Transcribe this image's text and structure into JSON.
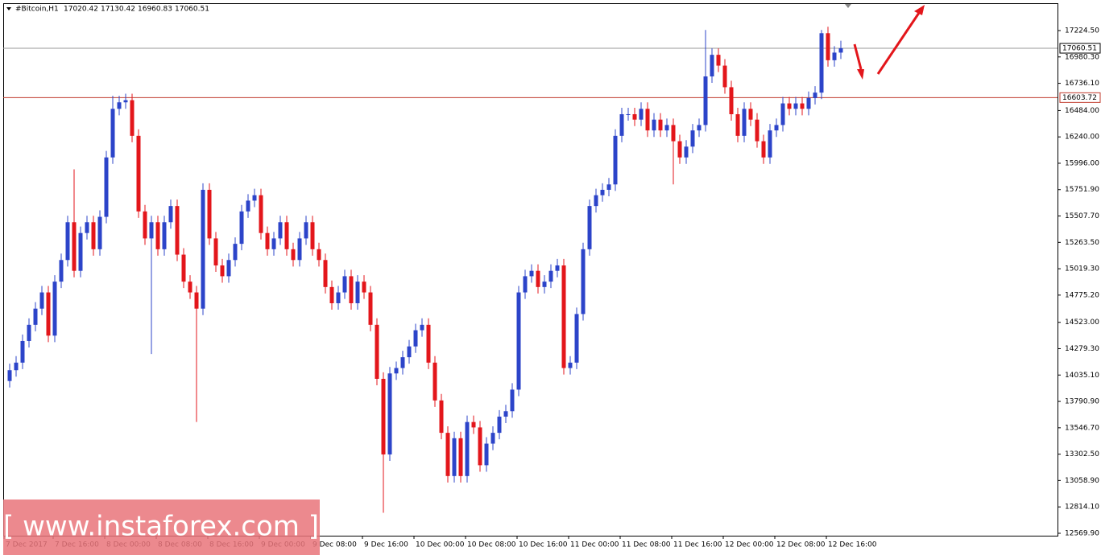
{
  "chart_data": {
    "type": "candlestick",
    "symbol": "#Bitcoin,H1",
    "header_values": [
      17020.42,
      17130.42,
      16960.83,
      17060.51
    ],
    "watermark": "[ www.instaforex.com ]",
    "up_color": "#2c44c9",
    "down_color": "#e3161b",
    "grid": false,
    "ylim": [
      12547.6,
      17477.7
    ],
    "yticks": [
      {
        "value": 17224.5,
        "label": "17224.50"
      },
      {
        "value": 16980.3,
        "label": "16980.30"
      },
      {
        "value": 16736.1,
        "label": "16736.10"
      },
      {
        "value": 16484,
        "label": "16484.00"
      },
      {
        "value": 16240,
        "label": "16240.00"
      },
      {
        "value": 15996,
        "label": "15996.00"
      },
      {
        "value": 15751.9,
        "label": "15751.90"
      },
      {
        "value": 15507.7,
        "label": "15507.70"
      },
      {
        "value": 15263.5,
        "label": "15263.50"
      },
      {
        "value": 15019.3,
        "label": "15019.30"
      },
      {
        "value": 14775.2,
        "label": "14775.20"
      },
      {
        "value": 14523,
        "label": "14523.00"
      },
      {
        "value": 14279.3,
        "label": "14279.30"
      },
      {
        "value": 14035.1,
        "label": "14035.10"
      },
      {
        "value": 13790.9,
        "label": "13790.90"
      },
      {
        "value": 13546.7,
        "label": "13546.70"
      },
      {
        "value": 13302.5,
        "label": "13302.50"
      },
      {
        "value": 13058.9,
        "label": "13058.90"
      },
      {
        "value": 12814.1,
        "label": "12814.10"
      },
      {
        "value": 12569.9,
        "label": "12569.90"
      }
    ],
    "levels": [
      17060.51,
      16603.72
    ],
    "level_colors": [
      "#999999",
      "#c0392b"
    ],
    "level_label_colors": [
      "#000000",
      "#c0392b"
    ],
    "categories": [
      "7 Dec 2017",
      null,
      null,
      null,
      null,
      null,
      null,
      "7 Dec 16:00",
      null,
      null,
      null,
      null,
      null,
      null,
      null,
      "8 Dec 00:00",
      null,
      null,
      null,
      null,
      null,
      null,
      null,
      "8 Dec 08:00",
      null,
      null,
      null,
      null,
      null,
      null,
      null,
      "8 Dec 16:00",
      null,
      null,
      null,
      null,
      null,
      null,
      null,
      "9 Dec 00:00",
      null,
      null,
      null,
      null,
      null,
      null,
      null,
      "9 Dec 08:00",
      null,
      null,
      null,
      null,
      null,
      null,
      null,
      "9 Dec 16:00",
      null,
      null,
      null,
      null,
      null,
      null,
      null,
      "10 Dec 00:00",
      null,
      null,
      null,
      null,
      null,
      null,
      null,
      "10 Dec 08:00",
      null,
      null,
      null,
      null,
      null,
      null,
      null,
      "10 Dec 16:00",
      null,
      null,
      null,
      null,
      null,
      null,
      null,
      "11 Dec 00:00",
      null,
      null,
      null,
      null,
      null,
      null,
      null,
      "11 Dec 08:00",
      null,
      null,
      null,
      null,
      null,
      null,
      null,
      "11 Dec 16:00",
      null,
      null,
      null,
      null,
      null,
      null,
      null,
      "12 Dec 00:00",
      null,
      null,
      null,
      null,
      null,
      null,
      null,
      "12 Dec 08:00",
      null,
      null,
      null,
      null,
      null,
      null,
      null,
      "12 Dec 16:00",
      null,
      null
    ],
    "open": [
      13980,
      14080,
      14150,
      14350,
      14500,
      14650,
      14800,
      14400,
      14900,
      15100,
      15450,
      15000,
      15350,
      15450,
      15200,
      15500,
      16050,
      16500,
      16560,
      16580,
      16250,
      15550,
      15300,
      15450,
      15200,
      15450,
      15600,
      15150,
      14900,
      14800,
      14650,
      15750,
      15300,
      15050,
      14950,
      15100,
      15250,
      15550,
      15650,
      15700,
      15350,
      15200,
      15300,
      15450,
      15200,
      15100,
      15300,
      15450,
      15200,
      15100,
      14850,
      14700,
      14800,
      14950,
      14700,
      14900,
      14800,
      14500,
      14000,
      13300,
      14050,
      14100,
      14200,
      14300,
      14450,
      14500,
      14150,
      13800,
      13500,
      13100,
      13450,
      13100,
      13600,
      13550,
      13200,
      13400,
      13500,
      13650,
      13700,
      13900,
      14800,
      14950,
      15000,
      14850,
      14900,
      15000,
      15050,
      14100,
      14150,
      14600,
      15200,
      15600,
      15700,
      15750,
      15800,
      16250,
      16450,
      16450,
      16400,
      16500,
      16300,
      16400,
      16300,
      16350,
      16200,
      16050,
      16150,
      16300,
      16350,
      16800,
      17000,
      16900,
      16700,
      16450,
      16250,
      16500,
      16400,
      16200,
      16050,
      16300,
      16350,
      16550,
      16500,
      16550,
      16500,
      16600,
      16650,
      17200,
      16950,
      17020.42
    ],
    "high": [
      14140,
      14210,
      14410,
      14560,
      14710,
      14860,
      14860,
      14960,
      15160,
      15510,
      15940,
      15410,
      15510,
      15510,
      15560,
      16110,
      16620,
      16620,
      16640,
      16640,
      16310,
      15610,
      15510,
      15510,
      15510,
      15660,
      15660,
      15210,
      14960,
      14860,
      15810,
      15810,
      15360,
      15110,
      15160,
      15310,
      15610,
      15710,
      15760,
      15760,
      15410,
      15360,
      15510,
      15510,
      15260,
      15360,
      15510,
      15510,
      15260,
      15160,
      14910,
      14860,
      15010,
      15010,
      14960,
      14960,
      14860,
      14560,
      14060,
      14110,
      14160,
      14260,
      14360,
      14510,
      14560,
      14560,
      14210,
      13860,
      13560,
      13510,
      13510,
      13660,
      13660,
      13610,
      13460,
      13560,
      13710,
      13760,
      13960,
      14860,
      15010,
      15060,
      15060,
      14960,
      15060,
      15110,
      15110,
      14210,
      14660,
      15260,
      15660,
      15760,
      15810,
      15860,
      16310,
      16510,
      16510,
      16510,
      16560,
      16560,
      16460,
      16460,
      16410,
      16410,
      16260,
      16210,
      16360,
      16410,
      17230,
      17060,
      17060,
      16960,
      16760,
      16510,
      16560,
      16560,
      16460,
      16260,
      16360,
      16410,
      16610,
      16610,
      16610,
      16610,
      16660,
      16710,
      17230,
      17260,
      17080,
      17130.42
    ],
    "low": [
      13920,
      14020,
      14090,
      14290,
      14440,
      14590,
      14340,
      14340,
      14840,
      15040,
      14940,
      14940,
      15290,
      15140,
      15140,
      15440,
      15990,
      16440,
      16500,
      16190,
      15490,
      15240,
      14230,
      15140,
      15140,
      15390,
      15090,
      14840,
      14740,
      13600,
      14590,
      15240,
      14990,
      14890,
      14890,
      15040,
      15190,
      15490,
      15590,
      15290,
      15140,
      15140,
      15240,
      15140,
      15040,
      15040,
      15240,
      15140,
      15040,
      14790,
      14640,
      14640,
      14740,
      14640,
      14640,
      14740,
      14440,
      13940,
      12760,
      13240,
      13990,
      14040,
      14140,
      14240,
      14390,
      14090,
      13740,
      13440,
      13040,
      13040,
      13040,
      13040,
      13490,
      13140,
      13140,
      13340,
      13440,
      13590,
      13640,
      13840,
      14740,
      14890,
      14790,
      14790,
      14840,
      14940,
      14040,
      14040,
      14090,
      14540,
      15140,
      15540,
      15640,
      15690,
      15740,
      16190,
      16390,
      16340,
      16340,
      16240,
      16240,
      16240,
      16240,
      15800,
      15990,
      15990,
      16090,
      16240,
      16290,
      16740,
      16840,
      16640,
      16390,
      16190,
      16190,
      16340,
      16140,
      15990,
      15990,
      16240,
      16290,
      16440,
      16440,
      16440,
      16440,
      16540,
      16590,
      16890,
      16890,
      16960.83
    ],
    "close": [
      14080,
      14150,
      14350,
      14500,
      14650,
      14800,
      14400,
      14900,
      15100,
      15450,
      15000,
      15350,
      15450,
      15200,
      15500,
      16050,
      16500,
      16560,
      16580,
      16250,
      15550,
      15300,
      15450,
      15200,
      15450,
      15600,
      15150,
      14900,
      14800,
      14650,
      15750,
      15300,
      15050,
      14950,
      15100,
      15250,
      15550,
      15650,
      15700,
      15350,
      15200,
      15300,
      15450,
      15200,
      15100,
      15300,
      15450,
      15200,
      15100,
      14850,
      14700,
      14800,
      14950,
      14700,
      14900,
      14800,
      14500,
      14000,
      13300,
      14050,
      14100,
      14200,
      14300,
      14450,
      14500,
      14150,
      13800,
      13500,
      13100,
      13450,
      13100,
      13600,
      13550,
      13200,
      13400,
      13500,
      13650,
      13700,
      13900,
      14800,
      14950,
      15000,
      14850,
      14900,
      15000,
      15050,
      14100,
      14150,
      14600,
      15200,
      15600,
      15700,
      15750,
      15800,
      16250,
      16450,
      16450,
      16400,
      16500,
      16300,
      16400,
      16300,
      16350,
      16200,
      16050,
      16150,
      16300,
      16350,
      16800,
      17000,
      16900,
      16700,
      16450,
      16250,
      16500,
      16400,
      16200,
      16050,
      16300,
      16350,
      16550,
      16500,
      16550,
      16500,
      16600,
      16650,
      17200,
      16950,
      17020.42,
      17060.51
    ]
  }
}
